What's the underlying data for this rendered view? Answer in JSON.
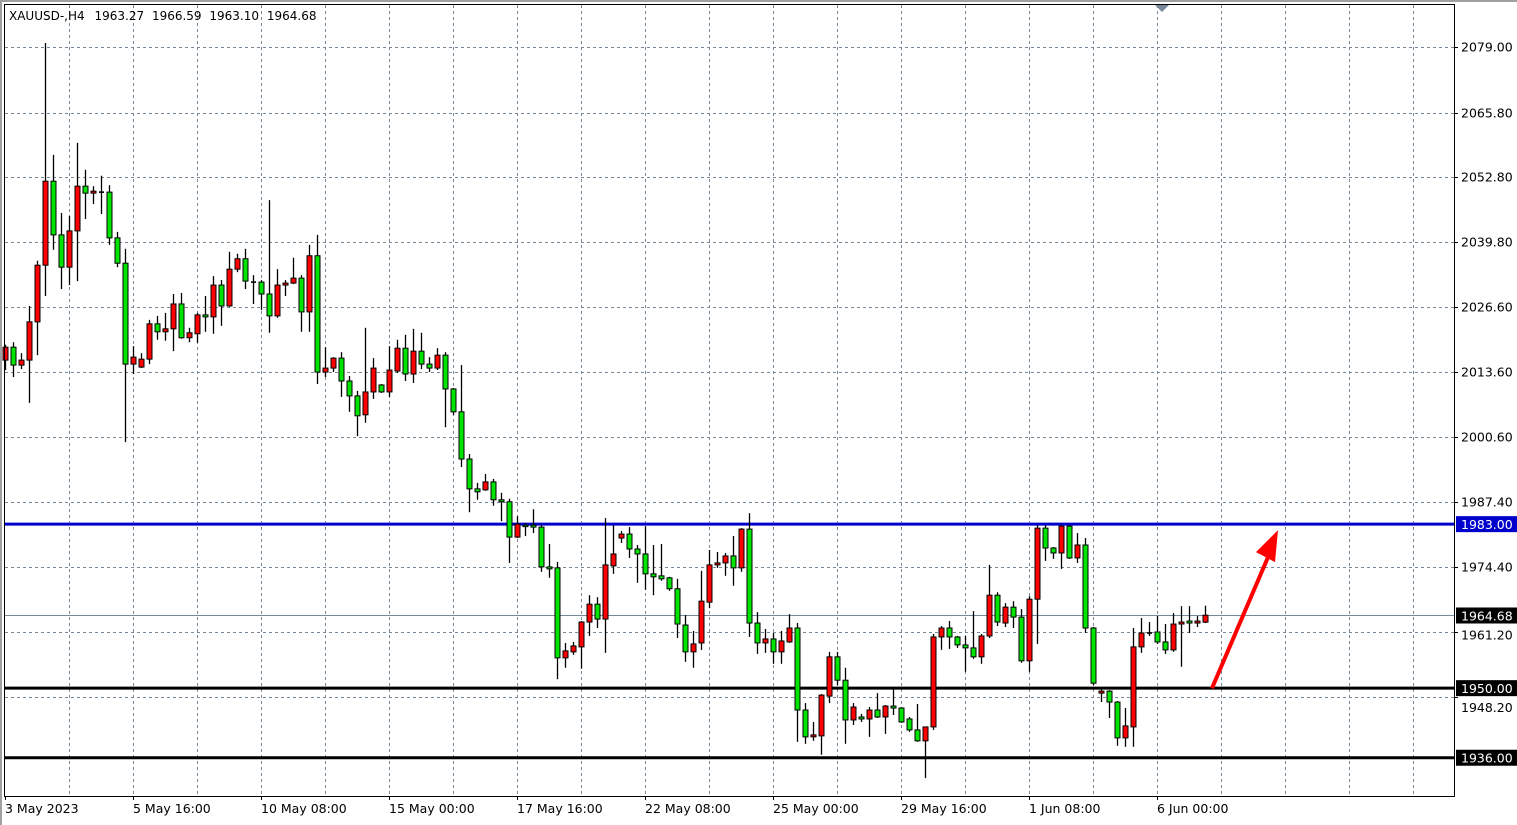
{
  "header": {
    "symbol": "XAUUSD-,H4",
    "open": "1963.27",
    "high": "1966.59",
    "low": "1963.10",
    "close": "1964.68"
  },
  "chart_data": {
    "type": "candlestick",
    "symbol": "XAUUSD-",
    "timeframe": "H4",
    "up_color": "#ff0000",
    "down_color": "#00e600",
    "doji_color": "#000000",
    "grid": true,
    "ylim": [
      1931.5,
      2079.0
    ],
    "y_ticks": [
      "2079.00",
      "2065.80",
      "2052.80",
      "2039.80",
      "2026.60",
      "2013.60",
      "2000.60",
      "1987.40",
      "1974.40",
      "1961.20",
      "1948.20"
    ],
    "y_tick_values": [
      2079.0,
      2065.8,
      2052.8,
      2039.8,
      2026.6,
      2013.6,
      2000.6,
      1987.4,
      1974.4,
      1961.2,
      1948.2
    ],
    "x_ticks": [
      "3 May 2023",
      "5 May 16:00",
      "10 May 08:00",
      "15 May 00:00",
      "17 May 16:00",
      "22 May 08:00",
      "25 May 00:00",
      "29 May 16:00",
      "1 Jun 08:00",
      "6 Jun 00:00"
    ],
    "ohlc": [
      [
        2016.0,
        2019.1,
        2014.0,
        2018.6
      ],
      [
        2018.6,
        2019.6,
        2012.6,
        2015.0
      ],
      [
        2015.0,
        2017.4,
        2014.2,
        2016.0
      ],
      [
        2016.0,
        2026.9,
        2007.4,
        2023.7
      ],
      [
        2023.7,
        2036.0,
        2017.0,
        2035.1
      ],
      [
        2035.1,
        2079.8,
        2028.9,
        2052.0
      ],
      [
        2052.0,
        2057.3,
        2038.2,
        2041.2
      ],
      [
        2041.2,
        2045.6,
        2030.3,
        2034.7
      ],
      [
        2034.7,
        2045.0,
        2031.1,
        2042.0
      ],
      [
        2042.0,
        2059.7,
        2031.9,
        2051.0
      ],
      [
        2051.0,
        2054.3,
        2044.4,
        2049.6
      ],
      [
        2049.6,
        2051.0,
        2047.4,
        2050.0
      ],
      [
        2049.8,
        2053.1,
        2045.4,
        2049.8
      ],
      [
        2049.8,
        2051.2,
        2039.2,
        2040.6
      ],
      [
        2040.6,
        2041.8,
        2034.7,
        2035.5
      ],
      [
        2035.5,
        2038.4,
        1999.5,
        2015.2
      ],
      [
        2015.2,
        2018.8,
        2013.2,
        2016.6
      ],
      [
        2014.6,
        2017.4,
        2014.4,
        2016.2
      ],
      [
        2016.2,
        2024.1,
        2015.2,
        2023.3
      ],
      [
        2023.3,
        2024.9,
        2020.1,
        2021.7
      ],
      [
        2021.7,
        2025.5,
        2019.9,
        2022.3
      ],
      [
        2022.3,
        2029.3,
        2017.8,
        2027.3
      ],
      [
        2027.3,
        2029.5,
        2020.3,
        2020.5
      ],
      [
        2020.5,
        2022.5,
        2019.6,
        2021.5
      ],
      [
        2021.3,
        2025.5,
        2019.5,
        2025.1
      ],
      [
        2025.1,
        2028.9,
        2021.7,
        2024.7
      ],
      [
        2024.7,
        2032.9,
        2021.3,
        2031.1
      ],
      [
        2031.1,
        2032.1,
        2022.9,
        2026.9
      ],
      [
        2026.9,
        2037.8,
        2026.7,
        2034.3
      ],
      [
        2034.3,
        2037.4,
        2033.7,
        2036.4
      ],
      [
        2036.4,
        2038.4,
        2030.3,
        2031.9
      ],
      [
        2031.7,
        2033.1,
        2027.3,
        2031.7
      ],
      [
        2031.7,
        2032.1,
        2026.1,
        2029.3
      ],
      [
        2029.3,
        2048.2,
        2021.5,
        2024.9
      ],
      [
        2024.9,
        2034.3,
        2024.5,
        2031.1
      ],
      [
        2031.1,
        2032.1,
        2028.9,
        2031.5
      ],
      [
        2031.5,
        2036.6,
        2031.3,
        2032.5
      ],
      [
        2032.5,
        2033.1,
        2021.7,
        2025.7
      ],
      [
        2025.7,
        2039.2,
        2021.7,
        2037.0
      ],
      [
        2037.0,
        2041.2,
        2011.2,
        2013.6
      ],
      [
        2013.6,
        2018.6,
        2012.6,
        2014.4
      ],
      [
        2014.4,
        2016.6,
        2013.6,
        2016.4
      ],
      [
        2016.4,
        2017.6,
        2008.6,
        2011.8
      ],
      [
        2011.8,
        2012.8,
        2005.6,
        2008.8
      ],
      [
        2008.8,
        2009.8,
        2000.7,
        2004.8
      ],
      [
        2005.0,
        2022.5,
        2003.4,
        2009.6
      ],
      [
        2009.6,
        2016.4,
        2008.2,
        2014.4
      ],
      [
        2011.0,
        2011.2,
        2009.4,
        2009.6
      ],
      [
        2009.6,
        2018.8,
        2008.6,
        2014.0
      ],
      [
        2013.8,
        2020.1,
        2013.4,
        2018.4
      ],
      [
        2018.4,
        2021.1,
        2011.8,
        2013.2
      ],
      [
        2013.2,
        2022.3,
        2011.4,
        2017.8
      ],
      [
        2017.8,
        2021.5,
        2014.2,
        2015.2
      ],
      [
        2015.2,
        2016.6,
        2013.6,
        2014.4
      ],
      [
        2014.4,
        2018.4,
        2014.0,
        2017.0
      ],
      [
        2017.0,
        2017.6,
        2002.5,
        2010.2
      ],
      [
        2010.2,
        2010.4,
        2005.0,
        2005.6
      ],
      [
        2005.6,
        2015.0,
        1994.5,
        1996.1
      ],
      [
        1996.1,
        1997.1,
        1985.4,
        1990.1
      ],
      [
        1990.1,
        1991.3,
        1987.9,
        1989.5
      ],
      [
        1989.9,
        1993.1,
        1989.7,
        1991.5
      ],
      [
        1991.5,
        1992.1,
        1986.7,
        1987.9
      ],
      [
        1987.9,
        1989.3,
        1983.6,
        1987.5
      ],
      [
        1987.5,
        1988.1,
        1975.2,
        1980.4
      ],
      [
        1980.4,
        1984.6,
        1980.2,
        1983.0
      ],
      [
        1982.8,
        1983.2,
        1980.6,
        1982.7
      ],
      [
        1982.8,
        1986.0,
        1981.2,
        1982.4
      ],
      [
        1982.4,
        1982.8,
        1973.4,
        1974.4
      ],
      [
        1974.4,
        1979.0,
        1972.2,
        1974.0
      ],
      [
        1974.2,
        1975.4,
        1951.8,
        1956.1
      ],
      [
        1956.1,
        1959.1,
        1954.1,
        1957.5
      ],
      [
        1957.3,
        1959.3,
        1956.7,
        1958.5
      ],
      [
        1958.3,
        1963.5,
        1953.9,
        1963.3
      ],
      [
        1963.3,
        1968.7,
        1960.5,
        1966.9
      ],
      [
        1966.9,
        1968.3,
        1962.1,
        1963.9
      ],
      [
        1963.9,
        1984.2,
        1957.1,
        1974.8
      ],
      [
        1974.6,
        1982.8,
        1973.0,
        1977.0
      ],
      [
        1980.2,
        1981.6,
        1979.2,
        1981.0
      ],
      [
        1981.0,
        1982.4,
        1976.2,
        1978.0
      ],
      [
        1978.0,
        1978.8,
        1971.2,
        1977.0
      ],
      [
        1977.0,
        1982.6,
        1969.8,
        1973.0
      ],
      [
        1973.0,
        1978.8,
        1968.7,
        1972.4
      ],
      [
        1972.6,
        1979.0,
        1971.6,
        1972.0
      ],
      [
        1972.2,
        1972.4,
        1969.6,
        1970.0
      ],
      [
        1970.0,
        1972.0,
        1960.1,
        1962.9
      ],
      [
        1962.7,
        1964.7,
        1955.3,
        1957.3
      ],
      [
        1957.3,
        1961.5,
        1954.1,
        1958.9
      ],
      [
        1959.1,
        1973.6,
        1957.7,
        1967.5
      ],
      [
        1967.3,
        1977.8,
        1966.1,
        1974.8
      ],
      [
        1974.8,
        1977.4,
        1974.2,
        1975.2
      ],
      [
        1975.2,
        1977.2,
        1972.6,
        1976.6
      ],
      [
        1976.6,
        1980.6,
        1970.6,
        1974.2
      ],
      [
        1974.2,
        1982.2,
        1973.4,
        1982.0
      ],
      [
        1982.0,
        1985.2,
        1960.3,
        1963.1
      ],
      [
        1963.1,
        1965.3,
        1956.9,
        1959.1
      ],
      [
        1959.1,
        1961.9,
        1957.1,
        1959.9
      ],
      [
        1959.9,
        1961.1,
        1954.9,
        1957.3
      ],
      [
        1957.3,
        1961.5,
        1954.9,
        1959.5
      ],
      [
        1959.3,
        1964.9,
        1959.1,
        1962.1
      ],
      [
        1962.1,
        1963.1,
        1939.2,
        1945.6
      ],
      [
        1945.6,
        1947.0,
        1938.8,
        1940.2
      ],
      [
        1940.2,
        1943.2,
        1939.4,
        1940.6
      ],
      [
        1940.4,
        1948.8,
        1936.6,
        1948.6
      ],
      [
        1948.4,
        1957.3,
        1947.0,
        1956.3
      ],
      [
        1956.3,
        1957.3,
        1950.6,
        1951.6
      ],
      [
        1951.6,
        1954.1,
        1938.8,
        1943.6
      ],
      [
        1943.6,
        1947.0,
        1942.6,
        1946.2
      ],
      [
        1944.2,
        1944.8,
        1943.2,
        1943.8
      ],
      [
        1943.8,
        1946.2,
        1940.2,
        1945.6
      ],
      [
        1945.6,
        1949.0,
        1944.0,
        1944.2
      ],
      [
        1944.2,
        1946.6,
        1940.8,
        1946.4
      ],
      [
        1946.4,
        1950.0,
        1944.6,
        1946.0
      ],
      [
        1946.0,
        1946.2,
        1943.0,
        1943.2
      ],
      [
        1943.8,
        1944.2,
        1941.2,
        1941.6
      ],
      [
        1941.6,
        1946.8,
        1939.2,
        1939.4
      ],
      [
        1939.4,
        1942.2,
        1931.9,
        1942.2
      ],
      [
        1942.2,
        1960.9,
        1941.6,
        1960.3
      ],
      [
        1960.3,
        1962.5,
        1957.7,
        1962.1
      ],
      [
        1962.1,
        1963.5,
        1957.9,
        1960.3
      ],
      [
        1960.3,
        1960.5,
        1958.1,
        1958.7
      ],
      [
        1958.7,
        1960.5,
        1953.3,
        1958.1
      ],
      [
        1958.1,
        1965.5,
        1955.9,
        1956.3
      ],
      [
        1956.3,
        1960.9,
        1954.9,
        1960.5
      ],
      [
        1960.5,
        1974.8,
        1960.1,
        1968.7
      ],
      [
        1968.7,
        1969.3,
        1962.5,
        1963.3
      ],
      [
        1963.1,
        1967.1,
        1962.3,
        1966.3
      ],
      [
        1966.3,
        1967.5,
        1962.1,
        1964.3
      ],
      [
        1964.3,
        1965.9,
        1955.1,
        1955.5
      ],
      [
        1955.5,
        1968.5,
        1953.3,
        1967.9
      ],
      [
        1967.9,
        1982.8,
        1958.9,
        1982.2
      ],
      [
        1982.2,
        1982.8,
        1975.6,
        1978.2
      ],
      [
        1978.2,
        1978.4,
        1976.0,
        1977.2
      ],
      [
        1977.2,
        1982.8,
        1974.0,
        1982.6
      ],
      [
        1982.6,
        1982.8,
        1976.0,
        1976.2
      ],
      [
        1976.2,
        1981.2,
        1975.2,
        1978.8
      ],
      [
        1978.8,
        1980.2,
        1961.1,
        1962.1
      ],
      [
        1962.1,
        1962.3,
        1950.6,
        1951.0
      ],
      [
        1949.0,
        1950.2,
        1947.2,
        1949.4
      ],
      [
        1949.4,
        1949.6,
        1944.0,
        1947.2
      ],
      [
        1947.2,
        1947.4,
        1938.4,
        1940.0
      ],
      [
        1940.0,
        1946.0,
        1938.2,
        1942.4
      ],
      [
        1942.2,
        1962.1,
        1938.2,
        1958.3
      ],
      [
        1958.3,
        1964.1,
        1957.1,
        1961.1
      ],
      [
        1961.1,
        1963.3,
        1960.5,
        1961.1
      ],
      [
        1961.3,
        1964.5,
        1958.9,
        1959.3
      ],
      [
        1959.3,
        1962.9,
        1956.9,
        1957.7
      ],
      [
        1957.7,
        1965.1,
        1957.3,
        1962.9
      ],
      [
        1962.9,
        1966.5,
        1954.3,
        1963.3
      ],
      [
        1963.5,
        1966.5,
        1961.1,
        1963.1
      ],
      [
        1963.1,
        1964.5,
        1962.3,
        1963.5
      ],
      [
        1963.27,
        1966.59,
        1963.1,
        1964.68
      ]
    ],
    "hlines": [
      {
        "price": 1983.0,
        "label": "1983.00",
        "color": "#0000cc"
      },
      {
        "price": 1950.0,
        "label": "1950.00",
        "color": "#000000"
      },
      {
        "price": 1936.0,
        "label": "1936.00",
        "color": "#000000"
      }
    ],
    "bid_line": {
      "price": 1964.68,
      "label": "1964.68",
      "color": "#778899"
    },
    "arrow": {
      "from_price": 1950.0,
      "to_price": 1983.0,
      "color": "#ff0000"
    }
  }
}
